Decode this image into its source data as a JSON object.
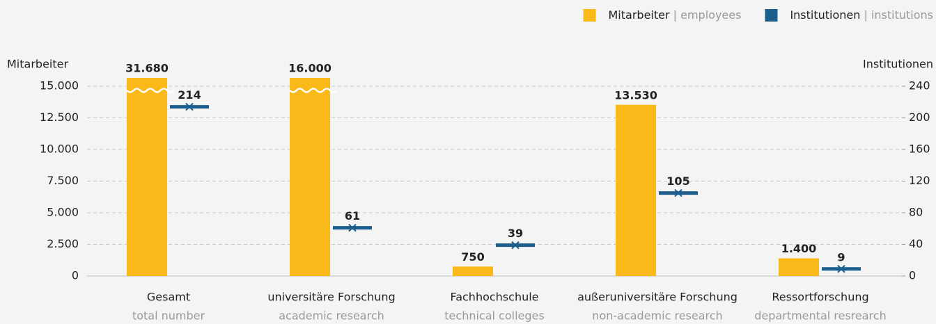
{
  "chart_data": {
    "type": "bar",
    "categories": [
      "Gesamt",
      "universitäre Forschung",
      "Fachhochschule",
      "außeruniversitäre Forschung",
      "Ressortforschung"
    ],
    "categories_en": [
      "total number",
      "academic research",
      "technical colleges",
      "non-academic research",
      "departmental resrearch"
    ],
    "y_label": "Mitarbeiter",
    "y2_label": "Institutionen",
    "series": [
      {
        "name": "Mitarbeiter | employees",
        "color": "#f9b918",
        "values": [
          31680,
          16000,
          750,
          13530,
          1400
        ],
        "value_labels": [
          "31.680",
          "16.000",
          "750",
          "13.530",
          "1.400"
        ]
      },
      {
        "name": "Institutionen | institutions",
        "color": "#1b5e8c",
        "axis": "y2",
        "values": [
          214,
          61,
          39,
          105,
          9
        ]
      }
    ],
    "ylim": [
      0,
      15000
    ],
    "yticks": [
      0,
      {
        "value": 2500,
        "label": "2.500"
      },
      {
        "value": 5000,
        "label": "5.000"
      },
      {
        "value": 7500,
        "label": "7.500"
      },
      {
        "value": 10000,
        "label": "10.000"
      },
      {
        "value": 12500,
        "label": "12.500"
      },
      {
        "value": 15000,
        "label": "15.000"
      }
    ],
    "y2lim": [
      0,
      240
    ],
    "y2ticks": [
      0,
      40,
      80,
      120,
      160,
      200,
      240
    ],
    "grid": true,
    "legend": "top-right"
  }
}
